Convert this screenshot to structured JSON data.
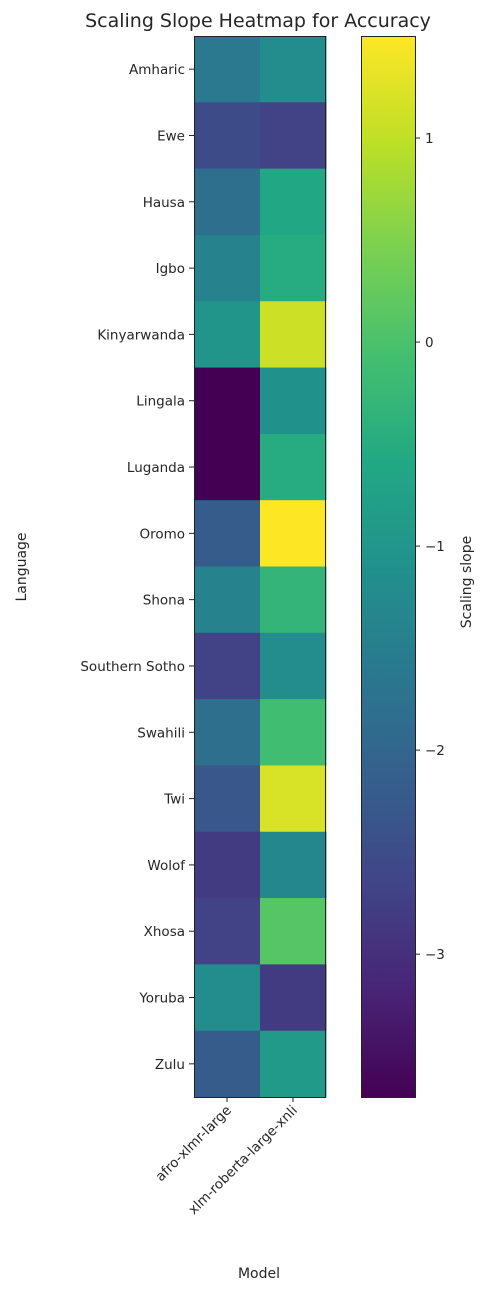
{
  "colors": {
    "colormap": "viridis",
    "text": "#262626",
    "frame": "#222222"
  },
  "chart_data": {
    "type": "heatmap",
    "title": "Scaling Slope Heatmap for Accuracy",
    "xlabel": "Model",
    "ylabel": "Language",
    "colorbar_label": "Scaling slope",
    "colorbar_range": [
      -3.7,
      1.5
    ],
    "colorbar_ticks": [
      1,
      0,
      -1,
      -2,
      -3
    ],
    "colorbar_tick_labels": [
      "1",
      "0",
      "−1",
      "−2",
      "−3"
    ],
    "columns": [
      "afro-xlmr-large",
      "xlm-roberta-large-xnli"
    ],
    "rows": [
      "Amharic",
      "Ewe",
      "Hausa",
      "Igbo",
      "Kinyarwanda",
      "Lingala",
      "Luganda",
      "Oromo",
      "Shona",
      "Southern Sotho",
      "Swahili",
      "Twi",
      "Wolof",
      "Xhosa",
      "Yoruba",
      "Zulu"
    ],
    "values": [
      [
        -1.6,
        -1.2
      ],
      [
        -2.5,
        -2.7
      ],
      [
        -1.8,
        -0.6
      ],
      [
        -1.4,
        -0.5
      ],
      [
        -1.0,
        1.1
      ],
      [
        -3.7,
        -1.1
      ],
      [
        -3.7,
        -0.5
      ],
      [
        -2.2,
        1.5
      ],
      [
        -1.4,
        -0.3
      ],
      [
        -2.7,
        -1.2
      ],
      [
        -1.8,
        -0.1
      ],
      [
        -2.3,
        1.2
      ],
      [
        -2.8,
        -1.3
      ],
      [
        -2.7,
        0.1
      ],
      [
        -1.2,
        -2.8
      ],
      [
        -2.2,
        -0.9
      ]
    ]
  }
}
